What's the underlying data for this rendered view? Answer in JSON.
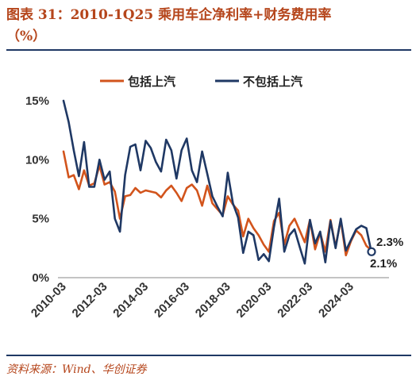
{
  "header": {
    "title_line1": "图表 31：2010-1Q25 乘用车企净利率+财务费用率",
    "title_line2": "（%）"
  },
  "source": "资料来源：Wind、华创证券",
  "chart_data": {
    "type": "line",
    "x": [
      "2010-03",
      "2010-06",
      "2010-09",
      "2010-12",
      "2011-03",
      "2011-06",
      "2011-09",
      "2011-12",
      "2012-03",
      "2012-06",
      "2012-09",
      "2012-12",
      "2013-03",
      "2013-06",
      "2013-09",
      "2013-12",
      "2014-03",
      "2014-06",
      "2014-09",
      "2014-12",
      "2015-03",
      "2015-06",
      "2015-09",
      "2015-12",
      "2016-03",
      "2016-06",
      "2016-09",
      "2016-12",
      "2017-03",
      "2017-06",
      "2017-09",
      "2017-12",
      "2018-03",
      "2018-06",
      "2018-09",
      "2018-12",
      "2019-03",
      "2019-06",
      "2019-09",
      "2019-12",
      "2020-03",
      "2020-06",
      "2020-09",
      "2020-12",
      "2021-03",
      "2021-06",
      "2021-09",
      "2021-12",
      "2022-03",
      "2022-06",
      "2022-09",
      "2022-12",
      "2023-03",
      "2023-06",
      "2023-09",
      "2023-12",
      "2024-03",
      "2024-06",
      "2024-09",
      "2024-12",
      "2025-03"
    ],
    "x_tick_labels": [
      "2010-03",
      "2012-03",
      "2014-03",
      "2016-03",
      "2018-03",
      "2020-03",
      "2022-03",
      "2024-03"
    ],
    "series": [
      {
        "name": "包括上汽",
        "color": "#d2541c",
        "values": [
          10.7,
          8.5,
          8.7,
          7.5,
          9.1,
          7.8,
          8.0,
          9.5,
          7.9,
          8.1,
          7.3,
          5.0,
          6.9,
          7.0,
          7.6,
          7.2,
          7.4,
          7.3,
          7.2,
          6.8,
          7.4,
          7.8,
          7.2,
          6.5,
          7.6,
          7.9,
          7.4,
          6.1,
          7.8,
          6.3,
          5.8,
          5.3,
          6.9,
          6.2,
          5.7,
          3.5,
          5.0,
          4.2,
          3.6,
          2.8,
          2.2,
          4.8,
          5.5,
          2.8,
          4.4,
          5.0,
          4.0,
          3.0,
          4.9,
          2.4,
          3.8,
          2.2,
          4.9,
          2.6,
          4.9,
          1.9,
          3.1,
          4.0,
          3.6,
          2.7,
          2.3
        ]
      },
      {
        "name": "不包括上汽",
        "color": "#1f3864",
        "values": [
          15.0,
          13.2,
          10.8,
          8.6,
          11.5,
          7.7,
          7.7,
          10.0,
          8.3,
          9.0,
          5.0,
          3.9,
          8.7,
          11.1,
          11.3,
          9.1,
          11.6,
          11.0,
          9.8,
          9.0,
          11.7,
          10.8,
          8.4,
          10.8,
          11.8,
          9.1,
          8.1,
          10.7,
          8.8,
          6.9,
          6.0,
          5.2,
          8.9,
          6.3,
          5.1,
          2.1,
          3.9,
          3.6,
          1.5,
          2.0,
          1.4,
          4.3,
          6.7,
          2.2,
          3.6,
          4.1,
          2.6,
          1.2,
          4.9,
          2.9,
          3.9,
          1.3,
          4.8,
          2.5,
          5.0,
          2.3,
          3.2,
          4.1,
          4.4,
          4.2,
          2.1
        ]
      }
    ],
    "end_labels": [
      "2.3%",
      "2.1%"
    ],
    "y_tick_labels": [
      "0%",
      "5%",
      "10%",
      "15%"
    ],
    "ylim": [
      0,
      15
    ],
    "legend_position": "top-center",
    "grid": false
  }
}
